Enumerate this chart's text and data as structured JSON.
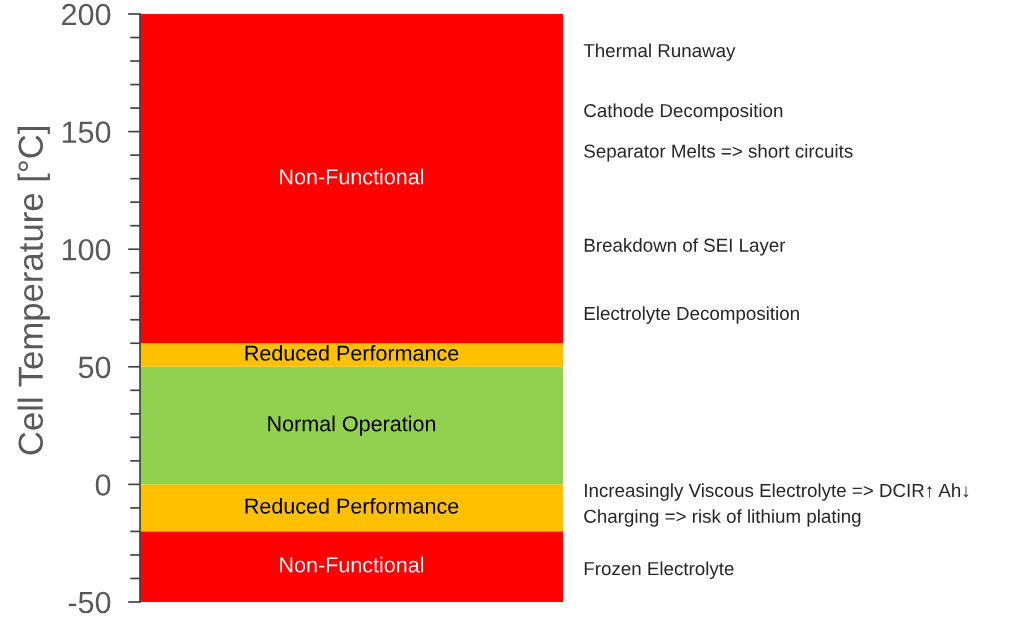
{
  "chart_data": {
    "type": "bar",
    "stacked": true,
    "categories": [
      null
    ],
    "ylabel": "Cell Temperature [°C]",
    "ylim": [
      -50,
      200
    ],
    "yticks": [
      -50,
      {
        "value": -40,
        "label": null
      },
      {
        "value": -30,
        "label": null
      },
      {
        "value": -20,
        "label": null
      },
      {
        "value": -10,
        "label": null
      },
      0,
      {
        "value": 10,
        "label": null
      },
      {
        "value": 20,
        "label": null
      },
      {
        "value": 30,
        "label": null
      },
      {
        "value": 40,
        "label": null
      },
      50,
      {
        "value": 60,
        "label": null
      },
      {
        "value": 70,
        "label": null
      },
      {
        "value": 80,
        "label": null
      },
      {
        "value": 90,
        "label": null
      },
      100,
      {
        "value": 110,
        "label": null
      },
      {
        "value": 120,
        "label": null
      },
      {
        "value": 130,
        "label": null
      },
      {
        "value": 140,
        "label": null
      },
      150,
      {
        "value": 160,
        "label": null
      },
      {
        "value": 170,
        "label": null
      },
      {
        "value": 180,
        "label": null
      },
      {
        "value": 190,
        "label": null
      },
      200
    ],
    "tick_labels": "y",
    "series": [
      {
        "name": "Normal Operation",
        "color": "#92d050",
        "values": [
          50
        ]
      },
      {
        "name": "Reduced Performance",
        "color": "#ffc000",
        "values": [
          10
        ]
      },
      {
        "name": "Non-Functional",
        "color": "#ff0000",
        "values": [
          140
        ]
      },
      {
        "name": "Reduced Performance",
        "color": "#ffc000",
        "values": [
          -20
        ]
      },
      {
        "name": "Non-Functional",
        "color": "#ff0000",
        "values": [
          -30
        ]
      }
    ],
    "annotations": [
      "Thermal Runaway",
      "Cathode Decomposition",
      "Separator Melts => short circuits",
      "Breakdown of SEI Layer",
      "Electrolyte Decomposition",
      "Increasingly Viscous Electrolyte => DCIR↑ Ah↓",
      "Charging => risk of lithium plating",
      "Frozen Electrolyte"
    ]
  }
}
